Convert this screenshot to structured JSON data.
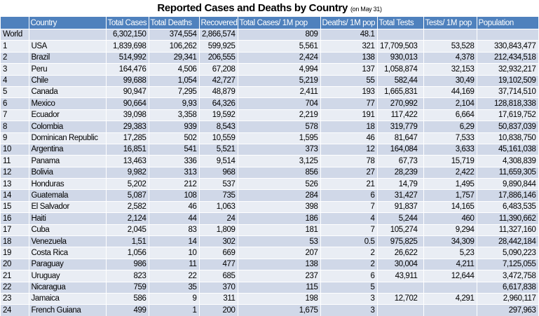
{
  "title": "Reported Cases and Deaths by Country",
  "subtitle": "(on May 31)",
  "columns": [
    "",
    "Country",
    "Total Cases",
    "Total Deaths",
    "Recovered",
    "Total Cases/ 1M pop",
    "Deaths/ 1M pop",
    "Total Tests",
    "Tests/ 1M pop",
    "Population"
  ],
  "rows": [
    [
      "World",
      "",
      "6,302,150",
      "374,554",
      "2,866,574",
      "809",
      "48.1",
      "",
      "",
      ""
    ],
    [
      "1",
      "USA",
      "1,839,698",
      "106,262",
      "599,925",
      "5,561",
      "321",
      "17,709,503",
      "53,528",
      "330,843,477"
    ],
    [
      "2",
      "Brazil",
      "514,992",
      "29,341",
      "206,555",
      "2,424",
      "138",
      "930,013",
      "4,378",
      "212,434,518"
    ],
    [
      "3",
      "Peru",
      "164,476",
      "4,506",
      "67,208",
      "4,994",
      "137",
      "1,058,874",
      "32,153",
      "32,932,217"
    ],
    [
      "4",
      "Chile",
      "99,688",
      "1,054",
      "42,727",
      "5,219",
      "55",
      "582,44",
      "30,49",
      "19,102,509"
    ],
    [
      "5",
      "Canada",
      "90,947",
      "7,295",
      "48,879",
      "2,411",
      "193",
      "1,665,831",
      "44,169",
      "37,714,510"
    ],
    [
      "6",
      "Mexico",
      "90,664",
      "9,93",
      "64,326",
      "704",
      "77",
      "270,992",
      "2,104",
      "128,818,338"
    ],
    [
      "7",
      "Ecuador",
      "39,098",
      "3,358",
      "19,592",
      "2,219",
      "191",
      "117,422",
      "6,664",
      "17,619,752"
    ],
    [
      "8",
      "Colombia",
      "29,383",
      "939",
      "8,543",
      "578",
      "18",
      "319,779",
      "6,29",
      "50,837,039"
    ],
    [
      "9",
      "Dominican Republic",
      "17,285",
      "502",
      "10,559",
      "1,595",
      "46",
      "81,647",
      "7,533",
      "10,838,750"
    ],
    [
      "10",
      "Argentina",
      "16,851",
      "541",
      "5,521",
      "373",
      "12",
      "164,084",
      "3,633",
      "45,161,038"
    ],
    [
      "11",
      "Panama",
      "13,463",
      "336",
      "9,514",
      "3,125",
      "78",
      "67,73",
      "15,719",
      "4,308,839"
    ],
    [
      "12",
      "Bolivia",
      "9,982",
      "313",
      "968",
      "856",
      "27",
      "28,239",
      "2,422",
      "11,659,305"
    ],
    [
      "13",
      "Honduras",
      "5,202",
      "212",
      "537",
      "526",
      "21",
      "14,79",
      "1,495",
      "9,890,844"
    ],
    [
      "14",
      "Guatemala",
      "5,087",
      "108",
      "735",
      "284",
      "6",
      "31,427",
      "1,757",
      "17,886,146"
    ],
    [
      "15",
      "El Salvador",
      "2,582",
      "46",
      "1,063",
      "398",
      "7",
      "91,837",
      "14,165",
      "6,483,535"
    ],
    [
      "16",
      "Haiti",
      "2,124",
      "44",
      "24",
      "186",
      "4",
      "5,244",
      "460",
      "11,390,662"
    ],
    [
      "17",
      "Cuba",
      "2,045",
      "83",
      "1,809",
      "181",
      "7",
      "105,274",
      "9,294",
      "11,327,160"
    ],
    [
      "18",
      "Venezuela",
      "1,51",
      "14",
      "302",
      "53",
      "0.5",
      "975,825",
      "34,309",
      "28,442,184"
    ],
    [
      "19",
      "Costa Rica",
      "1,056",
      "10",
      "669",
      "207",
      "2",
      "26,622",
      "5,23",
      "5,090,223"
    ],
    [
      "20",
      "Paraguay",
      "986",
      "11",
      "477",
      "138",
      "2",
      "30,004",
      "4,211",
      "7,125,055"
    ],
    [
      "21",
      "Uruguay",
      "823",
      "22",
      "685",
      "237",
      "6",
      "43,911",
      "12,644",
      "3,472,758"
    ],
    [
      "22",
      "Nicaragua",
      "759",
      "35",
      "370",
      "115",
      "5",
      "",
      "",
      "6,617,838"
    ],
    [
      "23",
      "Jamaica",
      "586",
      "9",
      "311",
      "198",
      "3",
      "12,702",
      "4,291",
      "2,960,117"
    ],
    [
      "24",
      "French Guiana",
      "499",
      "1",
      "200",
      "1,675",
      "3",
      "",
      "",
      "297,963"
    ]
  ]
}
